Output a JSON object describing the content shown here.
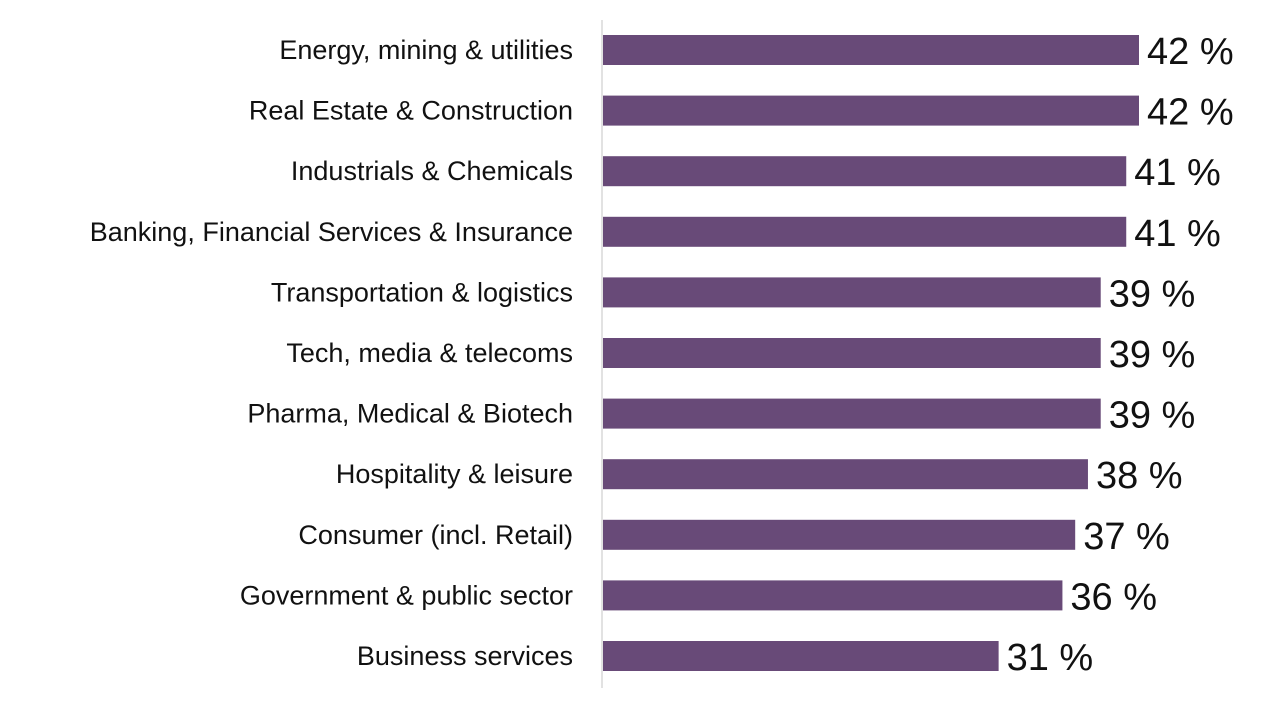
{
  "chart_data": {
    "type": "bar",
    "orientation": "horizontal",
    "categories": [
      "Energy, mining & utilities",
      "Real Estate & Construction",
      "Industrials & Chemicals",
      "Banking, Financial Services & Insurance",
      "Transportation & logistics",
      "Tech, media & telecoms",
      "Pharma, Medical & Biotech",
      "Hospitality & leisure",
      "Consumer (incl. Retail)",
      "Government & public sector",
      "Business services"
    ],
    "values": [
      42,
      42,
      41,
      41,
      39,
      39,
      39,
      38,
      37,
      36,
      31
    ],
    "value_labels": [
      "42 %",
      "42 %",
      "41 %",
      "41 %",
      "39 %",
      "39 %",
      "39 %",
      "38 %",
      "37 %",
      "36 %",
      "31 %"
    ],
    "unit": "%",
    "xlim": [
      0,
      42
    ],
    "grid": false,
    "legend": "none",
    "title": "",
    "xlabel": "",
    "ylabel": "",
    "bar_color": "#684a78",
    "axis_color": "#d9d9d9"
  }
}
